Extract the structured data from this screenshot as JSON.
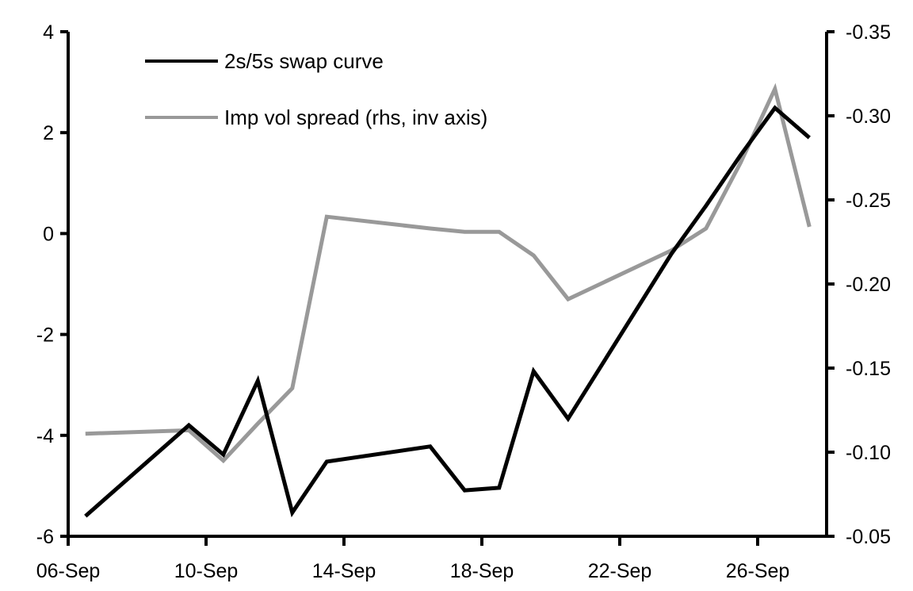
{
  "chart_data": {
    "type": "line",
    "title": "",
    "xlabel": "",
    "ylabel": "",
    "y2label": "",
    "x_ticks": [
      "06-Sep",
      "10-Sep",
      "14-Sep",
      "18-Sep",
      "22-Sep",
      "26-Sep"
    ],
    "x_tick_days": [
      6,
      10,
      14,
      18,
      22,
      26
    ],
    "x_range_days": [
      6,
      28
    ],
    "x_month": "Sep",
    "ylim": [
      -6,
      4
    ],
    "y_ticks": [
      "-6",
      "-4",
      "-2",
      "0",
      "2",
      "4"
    ],
    "y2lim": [
      -0.35,
      -0.05
    ],
    "y2_inverted": true,
    "y2_ticks": [
      "-0.35",
      "-0.30",
      "-0.25",
      "-0.20",
      "-0.15",
      "-0.10",
      "-0.05"
    ],
    "grid": false,
    "legend_position": "top-left",
    "x": [
      "06-Sep",
      "09-Sep",
      "10-Sep",
      "11-Sep",
      "12-Sep",
      "13-Sep",
      "16-Sep",
      "17-Sep",
      "18-Sep",
      "19-Sep",
      "20-Sep",
      "23-Sep",
      "24-Sep",
      "25-Sep",
      "26-Sep",
      "27-Sep"
    ],
    "x_days": [
      6,
      9,
      10,
      11,
      12,
      13,
      16,
      17,
      18,
      19,
      20,
      23,
      24,
      25,
      26,
      27
    ],
    "series": [
      {
        "name": "2s/5s swap curve",
        "axis": "left",
        "color": "#000000",
        "values": [
          -5.6,
          -3.8,
          -4.38,
          -2.92,
          -5.53,
          -4.52,
          -4.22,
          -5.09,
          -5.04,
          -2.73,
          -3.67,
          -0.4,
          0.55,
          1.55,
          2.49,
          1.9
        ]
      },
      {
        "name": "Imp vol spread (rhs, inv axis)",
        "axis": "right",
        "color": "#999999",
        "values": [
          -0.111,
          -0.113,
          -0.095,
          -0.117,
          -0.138,
          -0.24,
          -0.233,
          -0.231,
          -0.231,
          -0.217,
          -0.191,
          -0.22,
          -0.233,
          -0.272,
          -0.316,
          -0.234
        ]
      }
    ]
  }
}
